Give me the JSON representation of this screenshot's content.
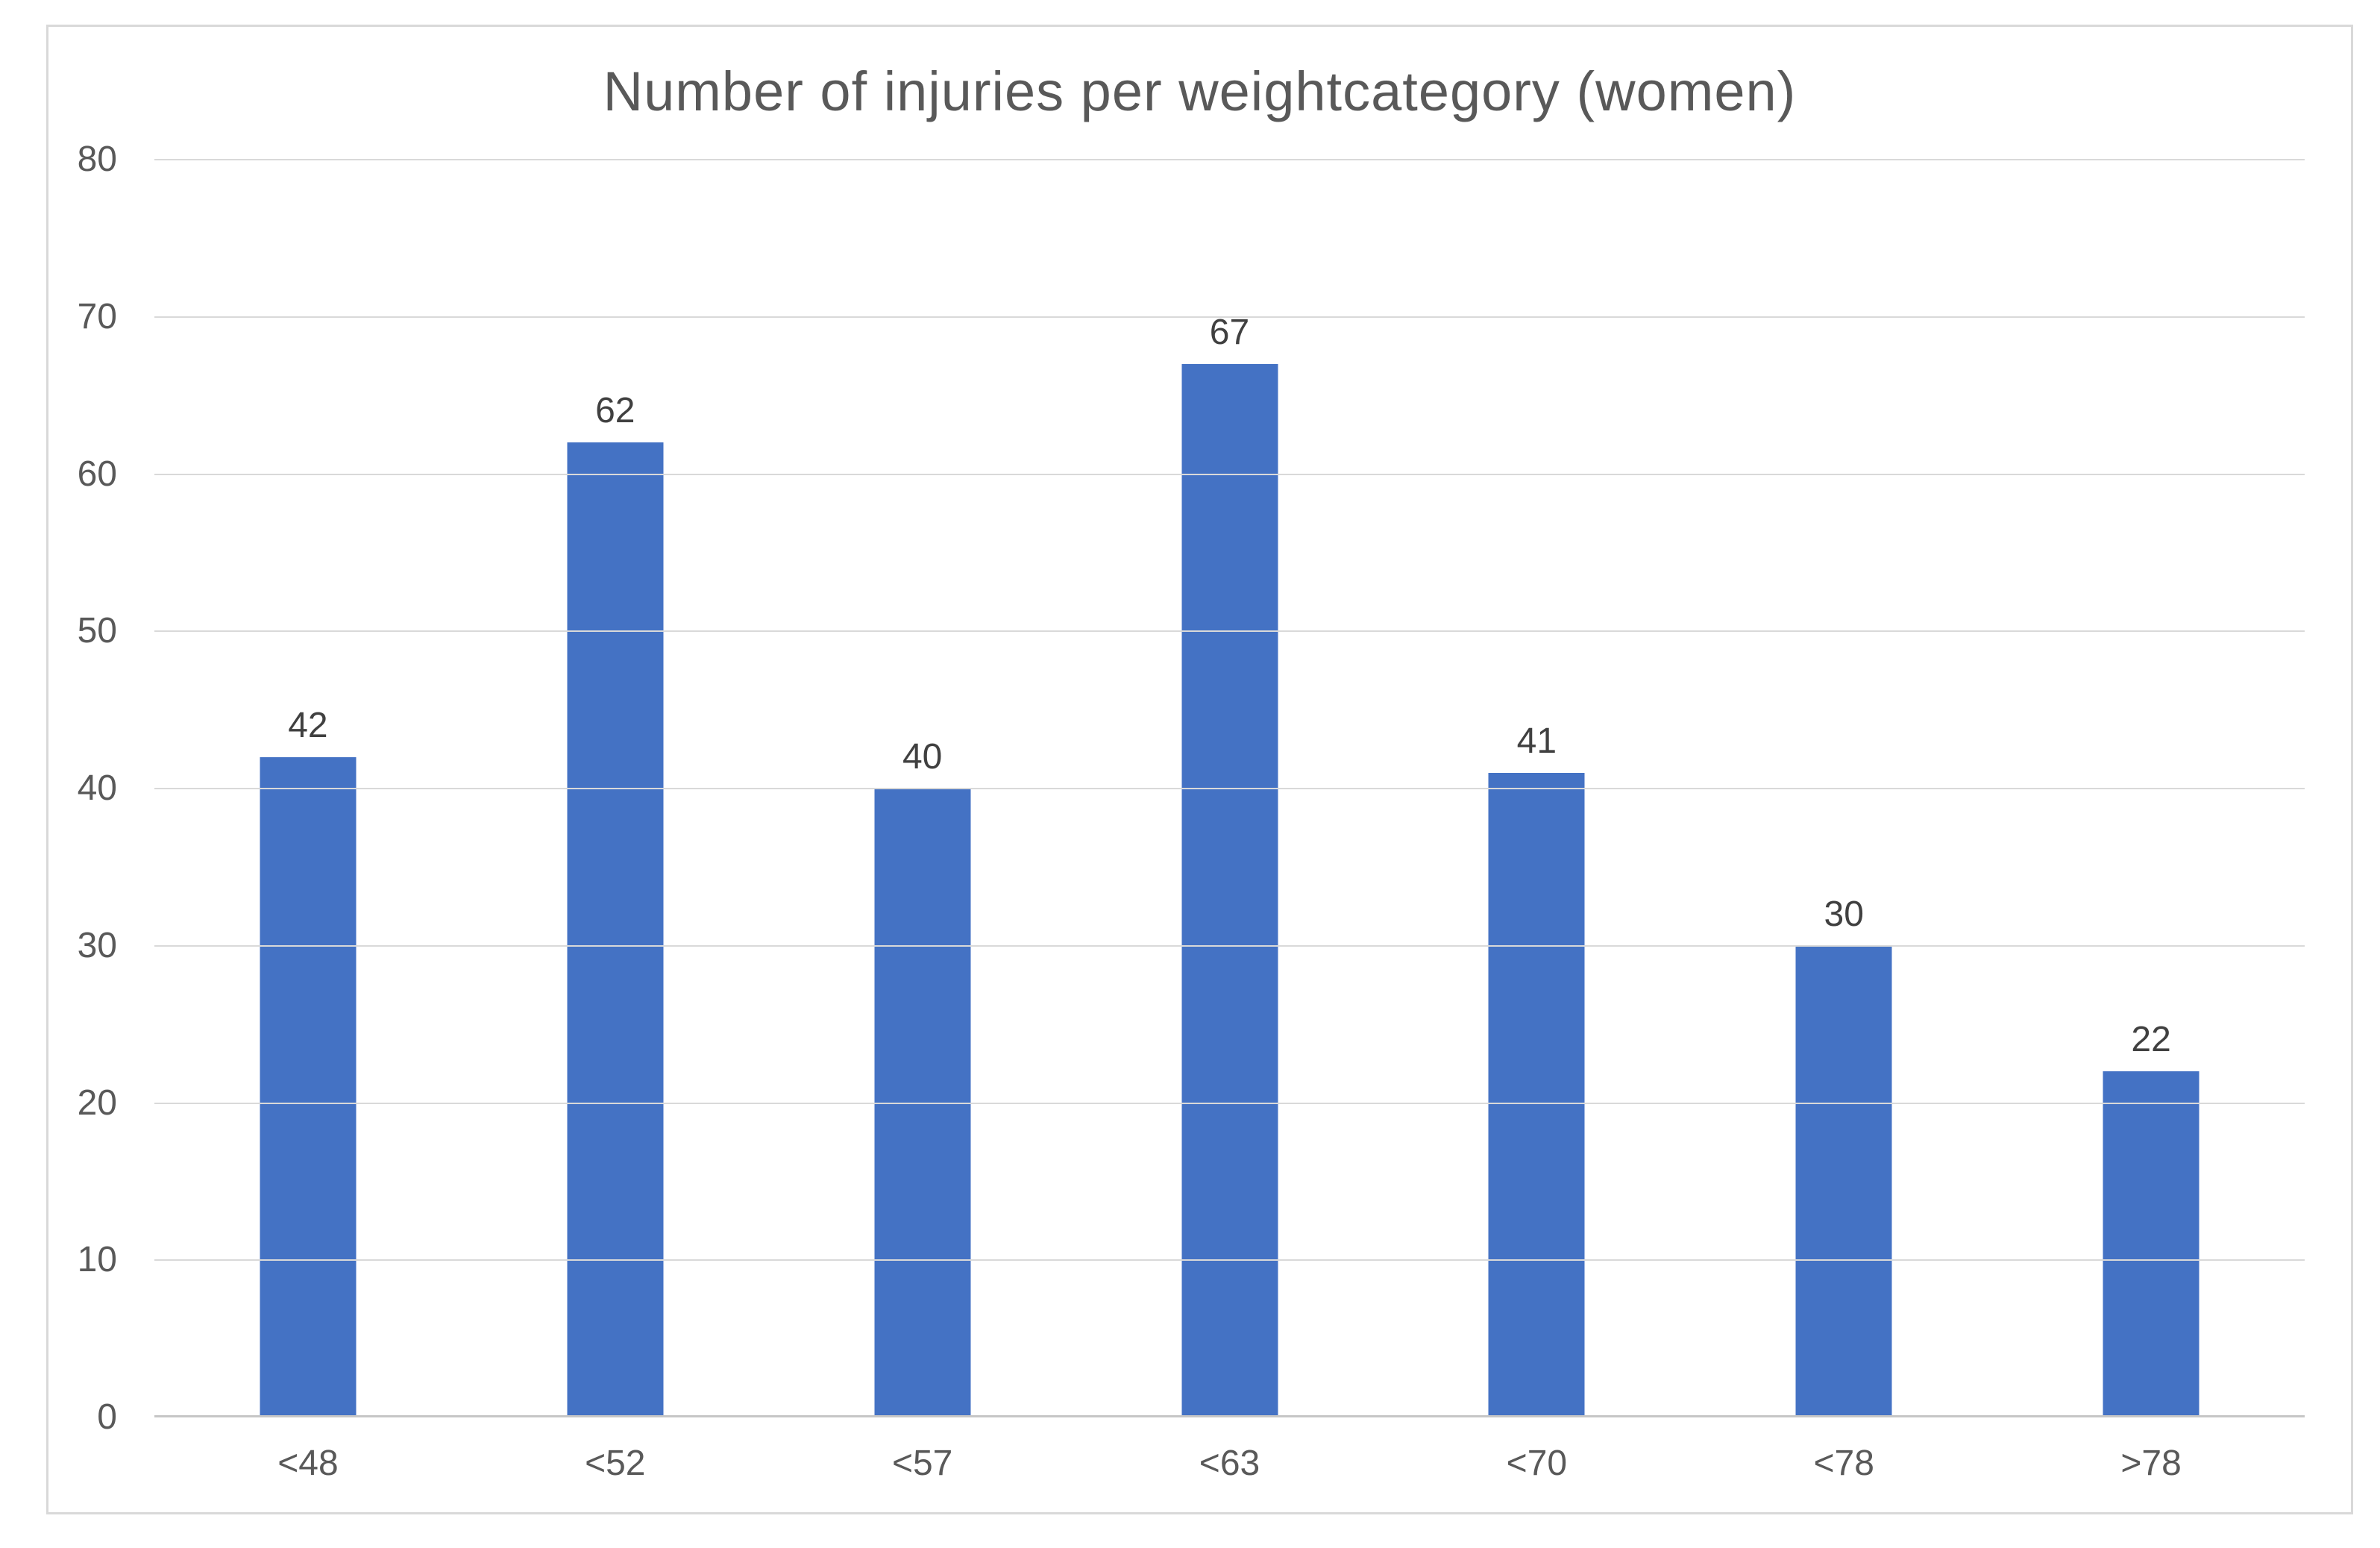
{
  "title": "Number of injuries per weightcategory (women)",
  "colors": {
    "bar": "#4472C4",
    "gridline": "#D9D9D9",
    "axis_line": "#C6C6C6",
    "frame_border": "#D9D9D9",
    "tick_text": "#595959",
    "title_text": "#595959",
    "data_label_text": "#404040",
    "background": "#FFFFFF"
  },
  "chart_data": {
    "type": "bar",
    "title": "Number of injuries per weightcategory (women)",
    "categories": [
      "<48",
      "<52",
      "<57",
      "<63",
      "<70",
      "<78",
      ">78"
    ],
    "values": [
      42,
      62,
      40,
      67,
      41,
      30,
      22
    ],
    "data_labels": [
      "42",
      "62",
      "40",
      "67",
      "41",
      "30",
      "22"
    ],
    "xlabel": "",
    "ylabel": "",
    "ylim": [
      0,
      80
    ],
    "yticks": [
      0,
      10,
      20,
      30,
      40,
      50,
      60,
      70,
      80
    ],
    "grid": true,
    "legend": false,
    "bar_color": "#4472C4",
    "data_labels_shown": true
  }
}
